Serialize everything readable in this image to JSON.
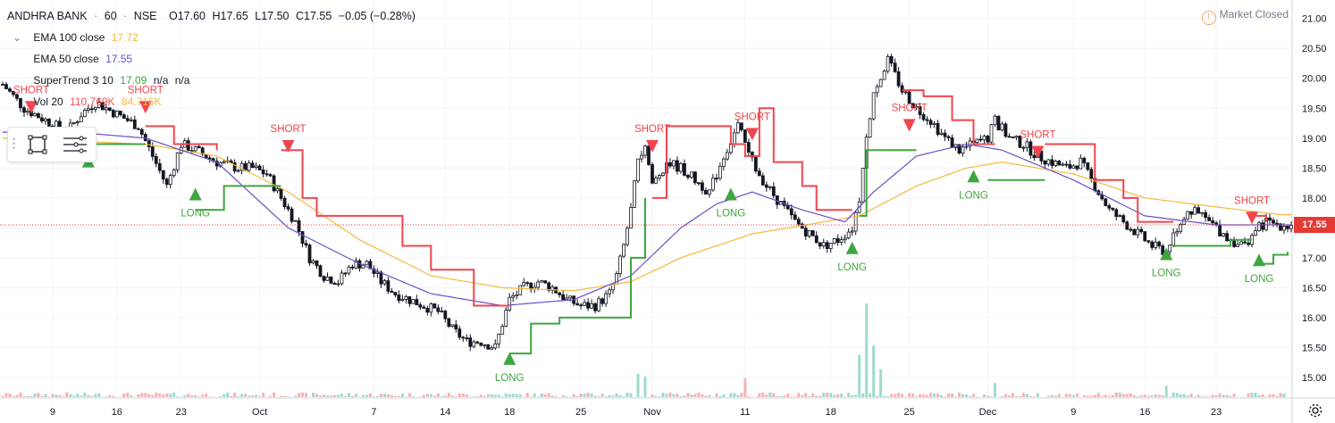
{
  "header": {
    "symbol": "ANDHRA BANK",
    "interval": "60",
    "exchange": "NSE",
    "open": "O17.60",
    "high": "H17.65",
    "low": "L17.50",
    "close": "C17.55",
    "change": "−0.05 (−0.28%)",
    "sep": "·"
  },
  "indicators": {
    "ema100": {
      "label": "EMA 100 close",
      "value": "17.72",
      "color": "#f6b73c"
    },
    "ema50": {
      "label": "EMA 50 close",
      "value": "17.55",
      "color": "#6a4fc8"
    },
    "supertrend": {
      "label": "SuperTrend 3 10",
      "value": "17.09",
      "value2": "n/a",
      "value3": "n/a"
    },
    "volume": {
      "label": "Vol 20",
      "value": "110.769K",
      "ma": "84.716K"
    }
  },
  "status": {
    "market_closed": "Market Closed",
    "warn_icon": "!"
  },
  "colors": {
    "up": "#26a69a",
    "down": "#ef5350",
    "candle_up": "#ffffff",
    "candle_outline": "#131722",
    "st_up": "#3fa63f",
    "st_down": "#f0454e",
    "grid": "#f0f3fa",
    "last_price": "#e53935"
  },
  "chart_data": {
    "type": "candlestick",
    "symbol": "ANDHRA BANK",
    "interval": "60",
    "ylim": [
      14.85,
      21.1
    ],
    "y_ticks": [
      15.0,
      15.5,
      16.0,
      16.5,
      17.0,
      17.5,
      18.0,
      18.5,
      19.0,
      19.5,
      20.0,
      20.5,
      21.0
    ],
    "y_tick_labels": [
      "15.00",
      "15.50",
      "16.00",
      "16.50",
      "17.00",
      "17.50",
      "18.00",
      "18.50",
      "19.00",
      "19.50",
      "20.00",
      "20.50",
      "21.00"
    ],
    "x_labels": [
      "9",
      "16",
      "23",
      "Oct",
      "7",
      "14",
      "18",
      "25",
      "Nov",
      "11",
      "18",
      "25",
      "Dec",
      "9",
      "16",
      "23"
    ],
    "x_label_bars": [
      7,
      16,
      25,
      36,
      52,
      62,
      71,
      81,
      91,
      104,
      116,
      127,
      138,
      150,
      160,
      170
    ],
    "last_price": 17.55,
    "last_price_label": "17.55",
    "close_path": [
      [
        0,
        19.9
      ],
      [
        3,
        19.5
      ],
      [
        6,
        19.3
      ],
      [
        9,
        19.1
      ],
      [
        11,
        19.4
      ],
      [
        13,
        19.6
      ],
      [
        16,
        19.4
      ],
      [
        19,
        19.2
      ],
      [
        21,
        18.7
      ],
      [
        23,
        18.2
      ],
      [
        25,
        18.9
      ],
      [
        27,
        18.8
      ],
      [
        30,
        18.6
      ],
      [
        33,
        18.5
      ],
      [
        35,
        18.5
      ],
      [
        37,
        18.4
      ],
      [
        39,
        18.0
      ],
      [
        41,
        17.6
      ],
      [
        43,
        17.0
      ],
      [
        45,
        16.7
      ],
      [
        47,
        16.6
      ],
      [
        49,
        16.9
      ],
      [
        51,
        16.9
      ],
      [
        53,
        16.6
      ],
      [
        55,
        16.4
      ],
      [
        57,
        16.3
      ],
      [
        59,
        16.2
      ],
      [
        61,
        16.1
      ],
      [
        63,
        15.8
      ],
      [
        65,
        15.6
      ],
      [
        67,
        15.6
      ],
      [
        69,
        15.5
      ],
      [
        71,
        16.3
      ],
      [
        73,
        16.5
      ],
      [
        75,
        16.6
      ],
      [
        77,
        16.5
      ],
      [
        79,
        16.3
      ],
      [
        81,
        16.2
      ],
      [
        83,
        16.2
      ],
      [
        85,
        16.4
      ],
      [
        86,
        16.7
      ],
      [
        87,
        17.2
      ],
      [
        88,
        17.8
      ],
      [
        89,
        18.6
      ],
      [
        90,
        18.9
      ],
      [
        91,
        18.2
      ],
      [
        93,
        18.6
      ],
      [
        95,
        18.5
      ],
      [
        97,
        18.3
      ],
      [
        99,
        18.1
      ],
      [
        101,
        18.7
      ],
      [
        103,
        19.2
      ],
      [
        105,
        18.6
      ],
      [
        107,
        18.2
      ],
      [
        109,
        17.9
      ],
      [
        111,
        17.6
      ],
      [
        113,
        17.4
      ],
      [
        115,
        17.2
      ],
      [
        117,
        17.3
      ],
      [
        119,
        17.5
      ],
      [
        120,
        18.0
      ],
      [
        121,
        19.0
      ],
      [
        122,
        19.8
      ],
      [
        124,
        20.3
      ],
      [
        126,
        19.8
      ],
      [
        128,
        19.5
      ],
      [
        130,
        19.3
      ],
      [
        132,
        19.0
      ],
      [
        134,
        18.8
      ],
      [
        136,
        18.9
      ],
      [
        138,
        19.0
      ],
      [
        139,
        19.3
      ],
      [
        141,
        19.0
      ],
      [
        143,
        18.9
      ],
      [
        145,
        18.7
      ],
      [
        147,
        18.6
      ],
      [
        149,
        18.5
      ],
      [
        151,
        18.6
      ],
      [
        153,
        18.2
      ],
      [
        155,
        17.8
      ],
      [
        157,
        17.6
      ],
      [
        159,
        17.4
      ],
      [
        161,
        17.2
      ],
      [
        163,
        17.1
      ],
      [
        164,
        17.4
      ],
      [
        166,
        17.8
      ],
      [
        168,
        17.7
      ],
      [
        170,
        17.5
      ],
      [
        172,
        17.3
      ],
      [
        174,
        17.2
      ],
      [
        175,
        17.4
      ],
      [
        177,
        17.6
      ],
      [
        179,
        17.55
      ]
    ],
    "ema100_path": [
      [
        0,
        19.0
      ],
      [
        10,
        18.95
      ],
      [
        20,
        18.9
      ],
      [
        30,
        18.7
      ],
      [
        40,
        18.1
      ],
      [
        50,
        17.3
      ],
      [
        60,
        16.7
      ],
      [
        70,
        16.5
      ],
      [
        80,
        16.45
      ],
      [
        88,
        16.6
      ],
      [
        95,
        17.0
      ],
      [
        105,
        17.4
      ],
      [
        115,
        17.6
      ],
      [
        120,
        17.7
      ],
      [
        128,
        18.2
      ],
      [
        135,
        18.5
      ],
      [
        140,
        18.6
      ],
      [
        150,
        18.4
      ],
      [
        160,
        18.0
      ],
      [
        170,
        17.85
      ],
      [
        179,
        17.72
      ]
    ],
    "ema50_path": [
      [
        0,
        19.1
      ],
      [
        10,
        19.1
      ],
      [
        20,
        19.0
      ],
      [
        30,
        18.6
      ],
      [
        40,
        17.5
      ],
      [
        50,
        16.9
      ],
      [
        60,
        16.4
      ],
      [
        70,
        16.2
      ],
      [
        80,
        16.3
      ],
      [
        88,
        16.7
      ],
      [
        95,
        17.5
      ],
      [
        100,
        17.9
      ],
      [
        105,
        18.1
      ],
      [
        112,
        17.8
      ],
      [
        118,
        17.6
      ],
      [
        122,
        18.1
      ],
      [
        128,
        18.7
      ],
      [
        135,
        18.9
      ],
      [
        140,
        18.8
      ],
      [
        150,
        18.3
      ],
      [
        160,
        17.7
      ],
      [
        170,
        17.55
      ],
      [
        179,
        17.55
      ]
    ],
    "supertrend_segments": [
      {
        "trend": "long",
        "points": [
          [
            8,
            18.9
          ],
          [
            20,
            18.9
          ]
        ]
      },
      {
        "trend": "short",
        "points": [
          [
            20,
            19.2
          ],
          [
            24,
            18.9
          ],
          [
            30,
            18.8
          ]
        ]
      },
      {
        "trend": "long",
        "points": [
          [
            27,
            17.8
          ],
          [
            31,
            18.2
          ],
          [
            39,
            18.2
          ]
        ]
      },
      {
        "trend": "short",
        "points": [
          [
            39,
            18.8
          ],
          [
            42,
            18.0
          ],
          [
            44,
            17.7
          ],
          [
            52,
            17.7
          ],
          [
            56,
            17.2
          ],
          [
            60,
            16.8
          ],
          [
            66,
            16.2
          ],
          [
            71,
            16.2
          ]
        ]
      },
      {
        "trend": "long",
        "points": [
          [
            71,
            15.4
          ],
          [
            74,
            15.9
          ],
          [
            78,
            16.0
          ],
          [
            86,
            16.0
          ],
          [
            88,
            17.0
          ],
          [
            90,
            18.0
          ]
        ]
      },
      {
        "trend": "short",
        "points": [
          [
            91,
            18.0
          ],
          [
            93,
            19.2
          ],
          [
            100,
            19.2
          ],
          [
            102,
            18.9
          ],
          [
            104,
            18.7
          ],
          [
            106,
            19.5
          ],
          [
            108,
            18.6
          ],
          [
            112,
            18.2
          ],
          [
            114,
            17.8
          ],
          [
            119,
            17.8
          ]
        ]
      },
      {
        "trend": "long",
        "points": [
          [
            120,
            17.7
          ],
          [
            121,
            18.8
          ],
          [
            124,
            18.8
          ],
          [
            128,
            18.8
          ]
        ]
      },
      {
        "trend": "short",
        "points": [
          [
            126,
            19.8
          ],
          [
            129,
            19.7
          ],
          [
            133,
            19.3
          ],
          [
            136,
            18.9
          ],
          [
            139,
            18.9
          ]
        ]
      },
      {
        "trend": "long",
        "points": [
          [
            138,
            18.3
          ],
          [
            146,
            18.3
          ]
        ]
      },
      {
        "trend": "short",
        "points": [
          [
            146,
            18.9
          ],
          [
            150,
            18.9
          ],
          [
            153,
            18.3
          ],
          [
            157,
            18.0
          ],
          [
            159,
            17.6
          ],
          [
            164,
            17.6
          ]
        ]
      },
      {
        "trend": "long",
        "points": [
          [
            164,
            17.2
          ],
          [
            172,
            17.3
          ],
          [
            175,
            17.3
          ]
        ]
      },
      {
        "trend": "short",
        "points": [
          [
            175,
            17.7
          ],
          [
            177,
            17.6
          ]
        ]
      },
      {
        "trend": "long",
        "points": [
          [
            176,
            16.9
          ],
          [
            178,
            17.05
          ],
          [
            180,
            17.1
          ]
        ]
      }
    ],
    "signals": [
      {
        "type": "short",
        "label": "SHORT",
        "bar": 4,
        "price": 19.5
      },
      {
        "type": "short",
        "label": "SHORT",
        "bar": 20,
        "price": 19.5
      },
      {
        "type": "long",
        "label": "",
        "bar": 12,
        "price": 18.6
      },
      {
        "type": "long",
        "label": "LONG",
        "bar": 27,
        "price": 18.05
      },
      {
        "type": "short",
        "label": "SHORT",
        "bar": 40,
        "price": 18.85
      },
      {
        "type": "long",
        "label": "LONG",
        "bar": 71,
        "price": 15.3
      },
      {
        "type": "short",
        "label": "SHORT",
        "bar": 91,
        "price": 18.85
      },
      {
        "type": "long",
        "label": "LONG",
        "bar": 102,
        "price": 18.05
      },
      {
        "type": "short",
        "label": "SHORT",
        "bar": 105,
        "price": 19.05
      },
      {
        "type": "long",
        "label": "LONG",
        "bar": 119,
        "price": 17.15
      },
      {
        "type": "short",
        "label": "SHORT",
        "bar": 127,
        "price": 19.2
      },
      {
        "type": "long",
        "label": "LONG",
        "bar": 136,
        "price": 18.35
      },
      {
        "type": "short",
        "label": "SHORT",
        "bar": 145,
        "price": 18.75
      },
      {
        "type": "long",
        "label": "LONG",
        "bar": 163,
        "price": 17.05
      },
      {
        "type": "short",
        "label": "SHORT",
        "bar": 175,
        "price": 17.65
      },
      {
        "type": "long",
        "label": "LONG",
        "bar": 176,
        "price": 16.95
      }
    ],
    "volume_spikes": [
      {
        "bar": 89,
        "value": 0.25
      },
      {
        "bar": 90,
        "value": 0.22
      },
      {
        "bar": 104,
        "value": 0.2
      },
      {
        "bar": 120,
        "value": 0.45
      },
      {
        "bar": 121,
        "value": 1.0
      },
      {
        "bar": 122,
        "value": 0.55
      },
      {
        "bar": 123,
        "value": 0.3
      },
      {
        "bar": 139,
        "value": 0.15
      },
      {
        "bar": 163,
        "value": 0.12
      }
    ],
    "grid": true
  }
}
